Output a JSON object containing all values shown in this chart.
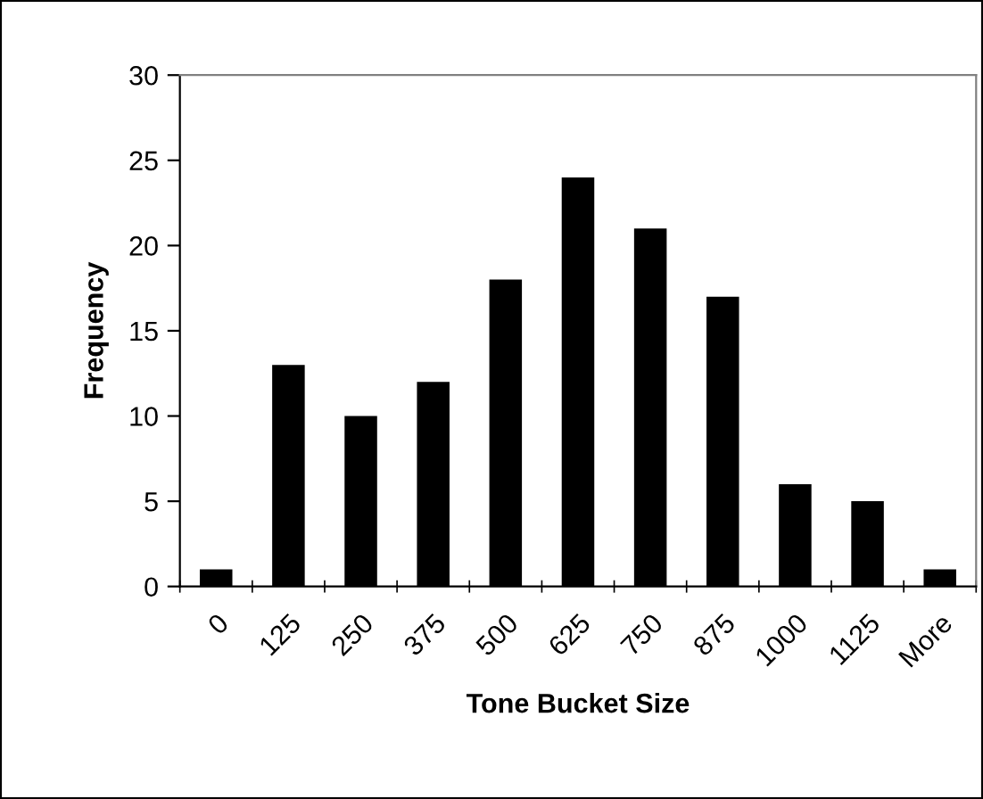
{
  "chart_data": {
    "type": "bar",
    "xlabel": "Tone Bucket Size",
    "ylabel": "Frequency",
    "categories": [
      "0",
      "125",
      "250",
      "375",
      "500",
      "625",
      "750",
      "875",
      "1000",
      "1125",
      "More"
    ],
    "values": [
      1,
      13,
      10,
      12,
      18,
      24,
      21,
      17,
      6,
      5,
      1
    ],
    "color": "#000000",
    "ylim": [
      0,
      30
    ],
    "yticks": [
      0,
      5,
      10,
      15,
      20,
      25,
      30
    ],
    "grid": false,
    "legend": false
  }
}
